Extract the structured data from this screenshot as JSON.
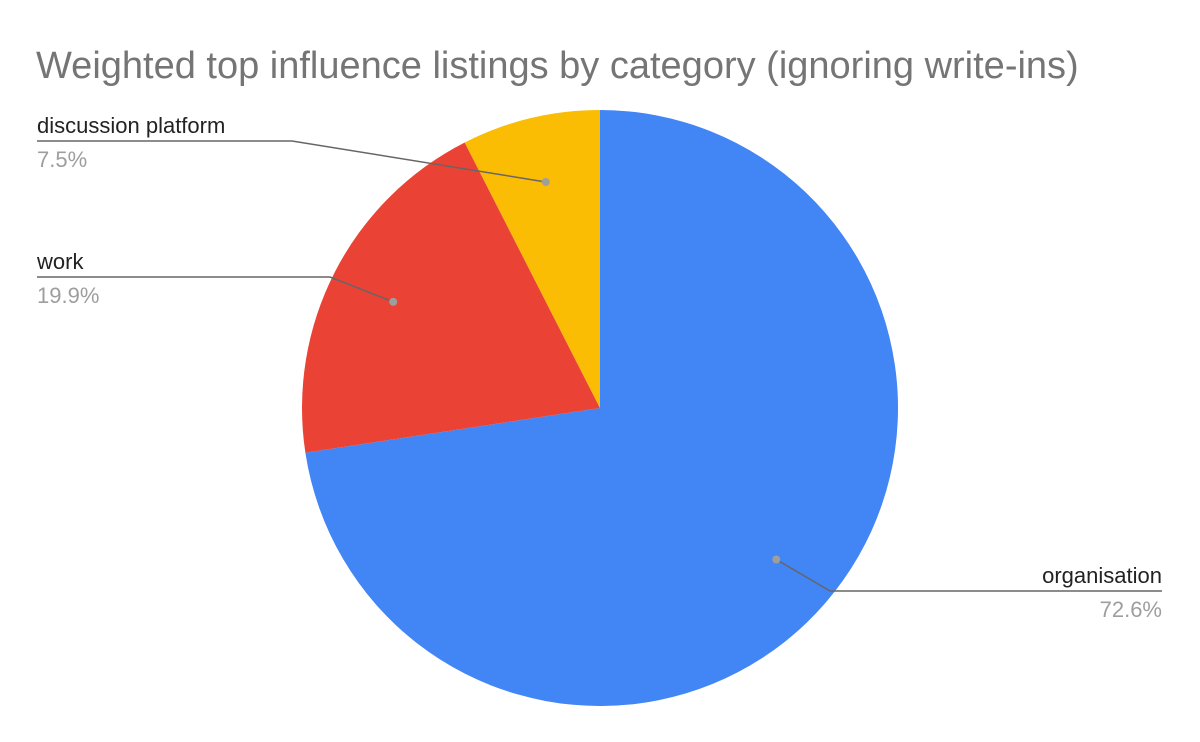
{
  "chart_data": {
    "type": "pie",
    "title": "Weighted top influence listings by category (ignoring write-ins)",
    "slices": [
      {
        "label": "organisation",
        "value": 72.6,
        "value_label": "72.6%",
        "color": "#4285f4"
      },
      {
        "label": "work",
        "value": 19.9,
        "value_label": "19.9%",
        "color": "#ea4335"
      },
      {
        "label": "discussion platform",
        "value": 7.5,
        "value_label": "7.5%",
        "color": "#fbbc04"
      }
    ],
    "start_angle": "12 o'clock",
    "direction": "clockwise",
    "legend": "none (labels beside slices)"
  }
}
